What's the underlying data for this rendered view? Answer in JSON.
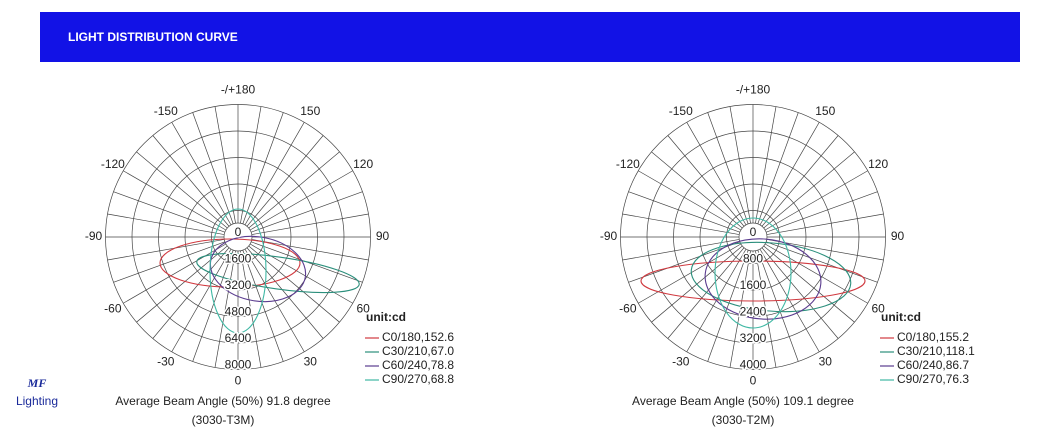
{
  "header": {
    "title": "LIGHT DISTRIBUTION CURVE"
  },
  "logo": {
    "mark": "MF",
    "sub": "Lighting"
  },
  "charts": [
    {
      "angle_labels": [
        "-/+180",
        "-150",
        "150",
        "-120",
        "120",
        "-90",
        "90",
        "-60",
        "60",
        "-30",
        "30",
        "0"
      ],
      "ring_labels": [
        "0",
        "1600",
        "3200",
        "4800",
        "6400",
        "8000"
      ],
      "unit": "unit:cd",
      "legend": [
        "C0/180,152.6",
        "C30/210,67.0",
        "C60/240,78.8",
        "C90/270,68.8"
      ],
      "caption": "Average Beam Angle (50%) 91.8 degree",
      "model": "(3030-T3M)"
    },
    {
      "angle_labels": [
        "-/+180",
        "-150",
        "150",
        "-120",
        "120",
        "-90",
        "90",
        "-60",
        "60",
        "-30",
        "30",
        "0"
      ],
      "ring_labels": [
        "0",
        "800",
        "1600",
        "2400",
        "3200",
        "4000"
      ],
      "unit": "unit:cd",
      "legend": [
        "C0/180,155.2",
        "C30/210,118.1",
        "C60/240,86.7",
        "C90/270,76.3"
      ],
      "caption": "Average Beam Angle (50%) 109.1 degree",
      "model": "(3030-T2M)"
    }
  ]
}
